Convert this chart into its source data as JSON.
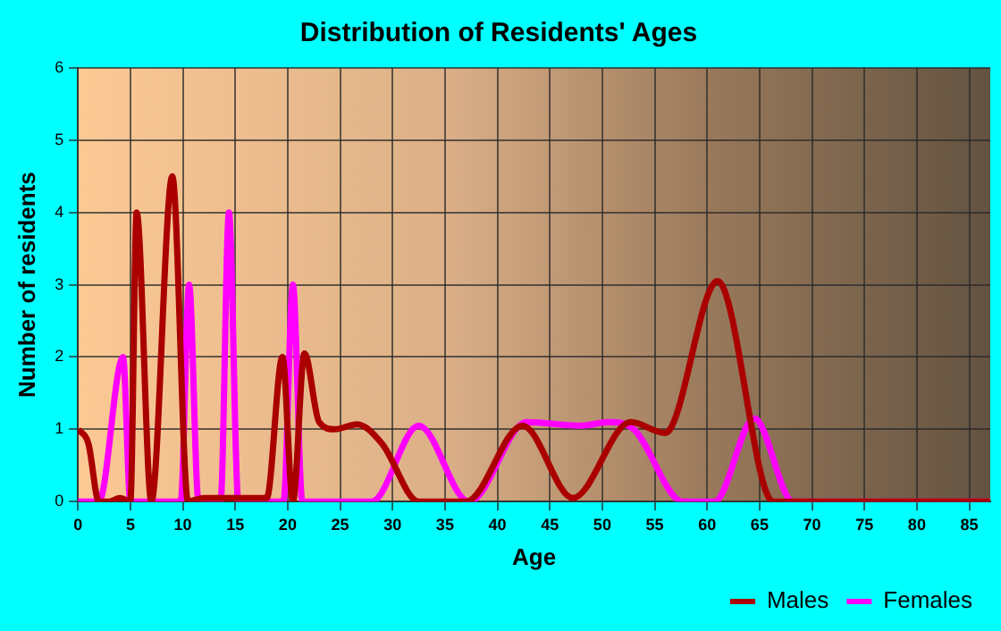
{
  "chart_data": {
    "type": "line",
    "title": "Distribution of Residents' Ages",
    "xlabel": "Age",
    "ylabel": "Number of residents",
    "xlim": [
      0,
      87
    ],
    "xticks": [
      0,
      5,
      10,
      15,
      20,
      25,
      30,
      35,
      40,
      45,
      50,
      55,
      60,
      65,
      70,
      75,
      80,
      85
    ],
    "ylim": [
      0,
      6
    ],
    "yticks": [
      0,
      1,
      2,
      3,
      4,
      5,
      6
    ],
    "grid": true,
    "legend": "bottom right",
    "marker": "none",
    "line_style": "solid",
    "series": [
      {
        "name": "Males",
        "color": "#aa0000",
        "x": [
          0,
          1,
          2,
          3,
          4,
          5,
          5.6,
          7,
          9,
          10.5,
          12,
          18,
          19.5,
          20.5,
          21.6,
          23,
          24.5,
          26.6,
          29,
          32.5,
          37,
          42.4,
          47.2,
          52.7,
          56,
          61,
          66.3,
          87
        ],
        "values": [
          1,
          0.8,
          0,
          0,
          0.05,
          0,
          4,
          0,
          4.5,
          0,
          0.05,
          0.05,
          2,
          0,
          2.05,
          1.1,
          1,
          1.07,
          0.8,
          0,
          0,
          1.05,
          0.05,
          1.1,
          0.95,
          3.05,
          0,
          0
        ]
      },
      {
        "name": "Females",
        "color": "#ff00ff",
        "x": [
          0,
          2,
          4.3,
          5,
          9.8,
          10.6,
          11.5,
          13.6,
          14.4,
          15.3,
          19.6,
          20.5,
          21.4,
          28,
          32.5,
          37.3,
          42.8,
          48,
          50.6,
          53,
          57.7,
          60.7,
          64.5,
          68.2,
          87
        ],
        "values": [
          0,
          0,
          2,
          0,
          0,
          3,
          0,
          0,
          4,
          0,
          0,
          3,
          0,
          0,
          1.05,
          0,
          1.1,
          1.05,
          1.1,
          1,
          0,
          0,
          1.15,
          0,
          0
        ]
      }
    ]
  }
}
